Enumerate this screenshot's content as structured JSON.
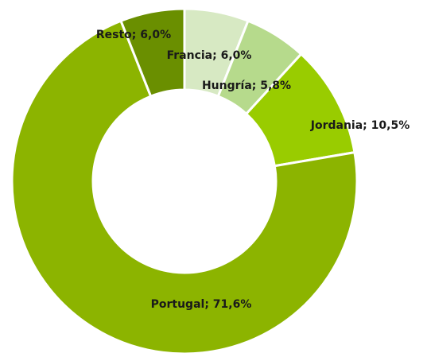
{
  "chart_data": {
    "type": "donut",
    "values": [
      6.0,
      5.8,
      10.5,
      71.6,
      6.0
    ],
    "value_labels": [
      "Francia; 6,0%",
      "Hungría; 5,8%",
      "Jordania; 10,5%",
      "Portugal; 71,6%",
      "Resto; 6,0%"
    ],
    "colors": [
      "#d7e9c3",
      "#b6da8c",
      "#99cc00",
      "#8cb400",
      "#6a8f00"
    ]
  }
}
